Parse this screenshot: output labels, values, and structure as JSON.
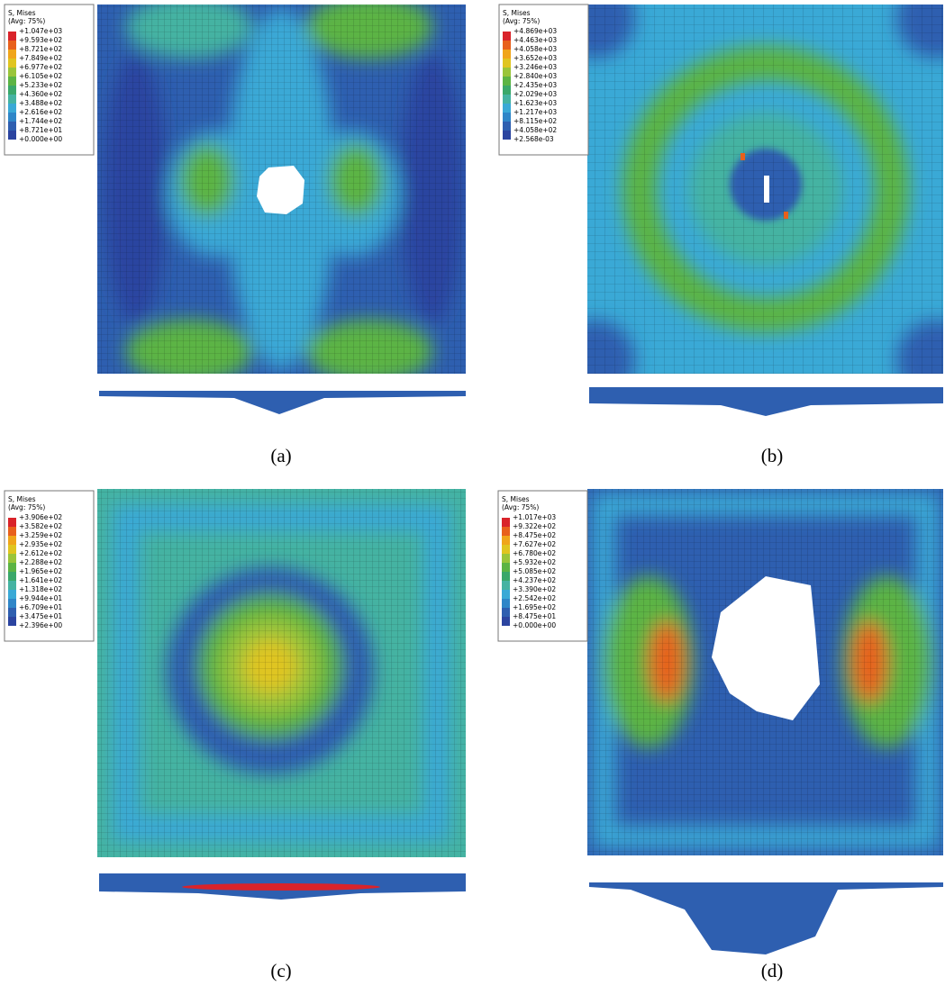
{
  "panels": [
    {
      "legend": {
        "title": "S, Mises",
        "subtitle": "(Avg: 75%)",
        "values": [
          "+1.047e+03",
          "+9.593e+02",
          "+8.721e+02",
          "+7.849e+02",
          "+6.977e+02",
          "+6.105e+02",
          "+5.233e+02",
          "+4.360e+02",
          "+3.488e+02",
          "+2.616e+02",
          "+1.744e+02",
          "+8.721e+01",
          "+0.000e+00"
        ]
      },
      "caption": "(a)"
    },
    {
      "legend": {
        "title": "S, Mises",
        "subtitle": "(Avg: 75%)",
        "values": [
          "+4.869e+03",
          "+4.463e+03",
          "+4.058e+03",
          "+3.652e+03",
          "+3.246e+03",
          "+2.840e+03",
          "+2.435e+03",
          "+2.029e+03",
          "+1.623e+03",
          "+1.217e+03",
          "+8.115e+02",
          "+4.058e+02",
          "+2.568e-03"
        ]
      },
      "caption": "(b)"
    },
    {
      "legend": {
        "title": "S, Mises",
        "subtitle": "(Avg: 75%)",
        "values": [
          "+3.906e+02",
          "+3.582e+02",
          "+3.259e+02",
          "+2.935e+02",
          "+2.612e+02",
          "+2.288e+02",
          "+1.965e+02",
          "+1.641e+02",
          "+1.318e+02",
          "+9.944e+01",
          "+6.709e+01",
          "+3.475e+01",
          "+2.396e+00"
        ]
      },
      "caption": "(c)"
    },
    {
      "legend": {
        "title": "S, Mises",
        "subtitle": "(Avg: 75%)",
        "values": [
          "+1.017e+03",
          "+9.322e+02",
          "+8.475e+02",
          "+7.627e+02",
          "+6.780e+02",
          "+5.932e+02",
          "+5.085e+02",
          "+4.237e+02",
          "+3.390e+02",
          "+2.542e+02",
          "+1.695e+02",
          "+8.475e+01",
          "+0.000e+00"
        ]
      },
      "caption": "(d)"
    }
  ]
}
